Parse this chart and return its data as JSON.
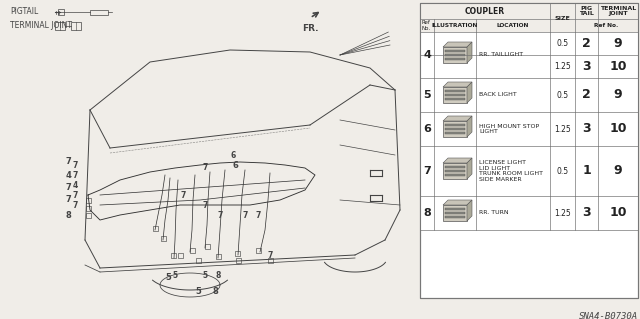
{
  "bg_color": "#f0ede8",
  "car_color": "#444444",
  "table_color": "#ffffff",
  "part_code": "SNA4-B0730A",
  "rows": [
    {
      "ref_no": "4",
      "location": "RR. TAILLIGHT",
      "sub_rows": [
        {
          "size": "0.5",
          "pig_tail": "2",
          "terminal_joint": "9"
        },
        {
          "size": "1.25",
          "pig_tail": "3",
          "terminal_joint": "10"
        }
      ]
    },
    {
      "ref_no": "5",
      "location": "BACK LIGHT",
      "sub_rows": [
        {
          "size": "0.5",
          "pig_tail": "2",
          "terminal_joint": "9"
        }
      ]
    },
    {
      "ref_no": "6",
      "location": "HIGH MOUNT STOP\nLIGHT",
      "sub_rows": [
        {
          "size": "1.25",
          "pig_tail": "3",
          "terminal_joint": "10"
        }
      ]
    },
    {
      "ref_no": "7",
      "location": "LICENSE LIGHT\nLID LIGHT\nTRUNK ROOM LIGHT\nSIDE MARKER",
      "sub_rows": [
        {
          "size": "0.5",
          "pig_tail": "1",
          "terminal_joint": "9"
        }
      ]
    },
    {
      "ref_no": "8",
      "location": "RR. TURN",
      "sub_rows": [
        {
          "size": "1.25",
          "pig_tail": "3",
          "terminal_joint": "10"
        }
      ]
    }
  ]
}
